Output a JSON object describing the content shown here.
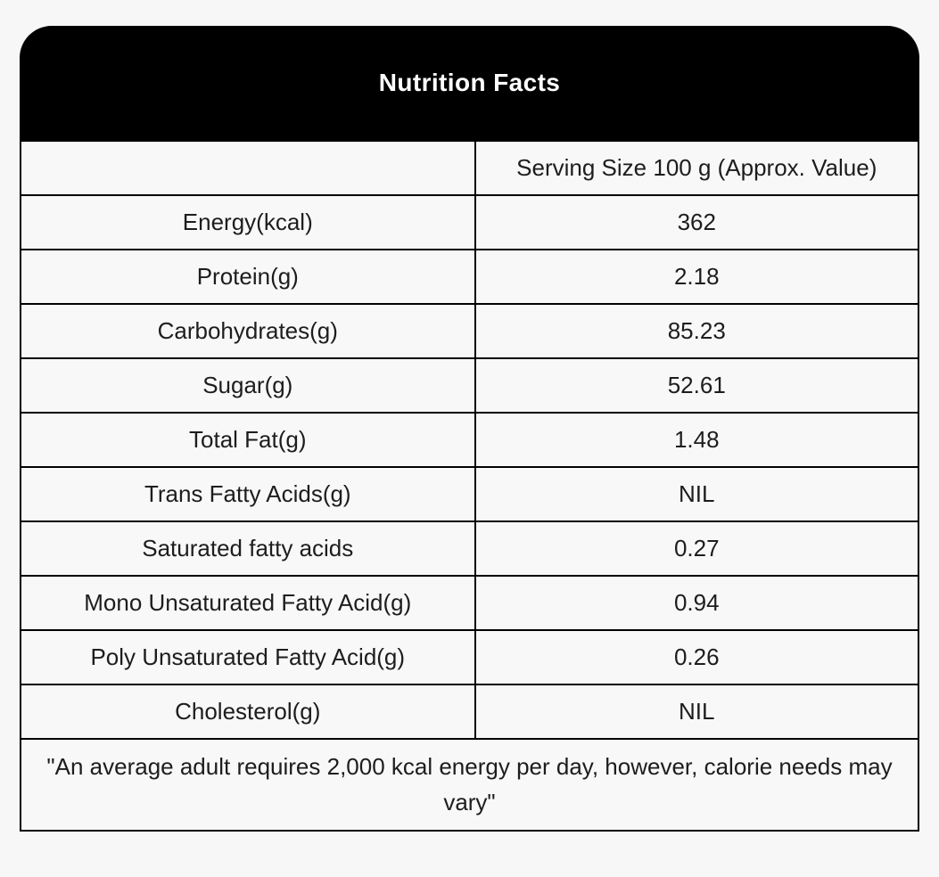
{
  "header": {
    "title": "Nutrition Facts"
  },
  "table": {
    "serving_header": "Serving Size 100 g (Approx. Value)",
    "rows": [
      {
        "label": "Energy(kcal)",
        "value": "362"
      },
      {
        "label": "Protein(g)",
        "value": "2.18"
      },
      {
        "label": "Carbohydrates(g)",
        "value": "85.23"
      },
      {
        "label": "Sugar(g)",
        "value": "52.61"
      },
      {
        "label": "Total Fat(g)",
        "value": "1.48"
      },
      {
        "label": "Trans Fatty Acids(g)",
        "value": "NIL"
      },
      {
        "label": "Saturated fatty acids",
        "value": "0.27"
      },
      {
        "label": "Mono Unsaturated Fatty Acid(g)",
        "value": "0.94"
      },
      {
        "label": "Poly Unsaturated Fatty Acid(g)",
        "value": "0.26"
      },
      {
        "label": "Cholesterol(g)",
        "value": "NIL"
      }
    ],
    "footnote": "\"An average adult requires 2,000 kcal energy per day, however, calorie needs may vary\""
  },
  "colors": {
    "header_bg": "#000000",
    "title_text": "#ffffff",
    "page_bg": "#f7f7f7",
    "cell_bg": "#f8f8f8",
    "border": "#000000",
    "body_text": "#1d1d1d"
  }
}
